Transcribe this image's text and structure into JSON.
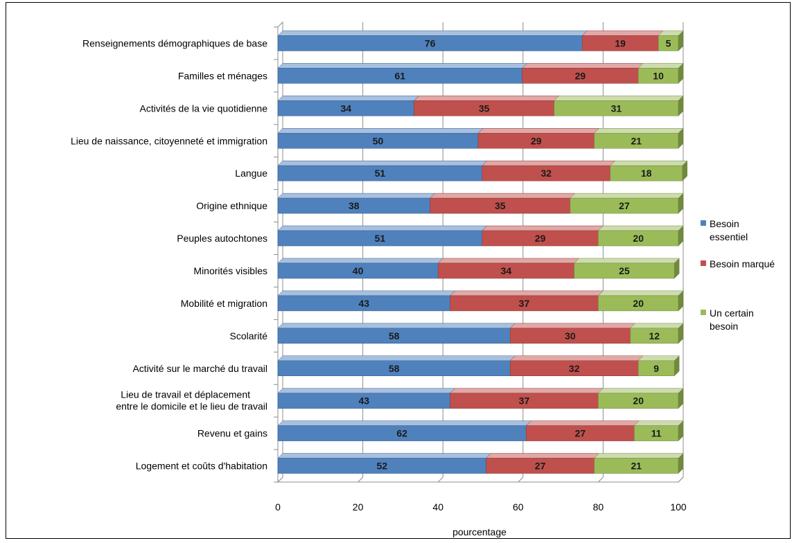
{
  "chart_data": {
    "type": "bar",
    "orientation": "horizontal",
    "stacked": true,
    "categories": [
      "Renseignements démographiques de base",
      "Familles et ménages",
      "Activités de la vie quotidienne",
      "Lieu de naissance, citoyenneté et immigration",
      "Langue",
      "Origine ethnique",
      "Peuples autochtones",
      "Minorités visibles",
      "Mobilité et migration",
      "Scolarité",
      "Activité sur le marché du travail",
      [
        "Lieu de travail et déplacement",
        "entre le domicile et le lieu de travail"
      ],
      "Revenu et gains",
      "Logement et coûts d'habitation"
    ],
    "series": [
      {
        "name": "Besoin essentiel",
        "values": [
          76,
          61,
          34,
          50,
          51,
          38,
          51,
          40,
          43,
          58,
          58,
          43,
          62,
          52
        ]
      },
      {
        "name": "Besoin marqué",
        "values": [
          19,
          29,
          35,
          29,
          32,
          35,
          29,
          34,
          37,
          30,
          32,
          37,
          27,
          27
        ]
      },
      {
        "name": "Un certain besoin",
        "values": [
          5,
          10,
          31,
          21,
          18,
          27,
          20,
          25,
          20,
          12,
          9,
          20,
          11,
          21
        ]
      }
    ],
    "legend_lines": [
      [
        "Besoin",
        "essentiel"
      ],
      [
        "Besoin marqué"
      ],
      [
        "Un certain",
        "besoin"
      ]
    ],
    "colors": {
      "series": [
        "#4f81bd",
        "#c0504d",
        "#9bbb59"
      ],
      "series_dark": [
        "#385d8a",
        "#8c3836",
        "#71893f"
      ],
      "series_top": [
        "#a7c0df",
        "#e0a8a6",
        "#cddcae"
      ]
    },
    "xlabel": "pourcentage",
    "ylabel": "",
    "title": "",
    "xlim": [
      0,
      100
    ],
    "xticks": [
      "0",
      "20",
      "40",
      "60",
      "80",
      "100"
    ],
    "grid": true,
    "legend_position": "right"
  }
}
